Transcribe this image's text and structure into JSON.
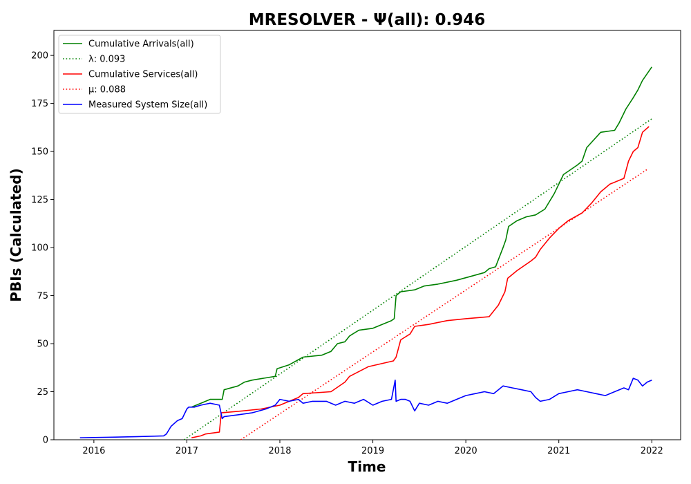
{
  "chart_data": {
    "type": "line",
    "title": "MRESOLVER -  Ψ(all): 0.946",
    "xlabel": "Time",
    "ylabel": "PBIs (Calculated)",
    "xlim": [
      2015.57,
      2022.31
    ],
    "ylim": [
      0,
      213
    ],
    "x_ticks": [
      2016,
      2017,
      2018,
      2019,
      2020,
      2021,
      2022
    ],
    "x_tick_labels": [
      "2016",
      "2017",
      "2018",
      "2019",
      "2020",
      "2021",
      "2022"
    ],
    "y_ticks": [
      0,
      25,
      50,
      75,
      100,
      125,
      150,
      175,
      200
    ],
    "y_tick_labels": [
      "0",
      "25",
      "50",
      "75",
      "100",
      "125",
      "150",
      "175",
      "200"
    ],
    "grid": false,
    "legend_position": "top-left",
    "series": [
      {
        "name": "Cumulative Arrivals(all)",
        "color": "#008000",
        "style": "solid",
        "x": [
          2017.05,
          2017.15,
          2017.25,
          2017.38,
          2017.4,
          2017.55,
          2017.62,
          2017.7,
          2017.95,
          2017.97,
          2018.1,
          2018.25,
          2018.45,
          2018.55,
          2018.62,
          2018.7,
          2018.75,
          2018.85,
          2019.0,
          2019.1,
          2019.2,
          2019.23,
          2019.25,
          2019.3,
          2019.45,
          2019.55,
          2019.7,
          2019.9,
          2020.05,
          2020.2,
          2020.25,
          2020.32,
          2020.4,
          2020.43,
          2020.46,
          2020.55,
          2020.65,
          2020.75,
          2020.85,
          2020.95,
          2021.05,
          2021.2,
          2021.25,
          2021.3,
          2021.45,
          2021.6,
          2021.65,
          2021.72,
          2021.8,
          2021.85,
          2021.9,
          2022.0
        ],
        "y": [
          17,
          19,
          21,
          21,
          26,
          28,
          30,
          31,
          33,
          37,
          39,
          43,
          44,
          46,
          50,
          51,
          54,
          57,
          58,
          60,
          62,
          63,
          75,
          77,
          78,
          80,
          81,
          83,
          85,
          87,
          89,
          90,
          100,
          104,
          111,
          114,
          116,
          117,
          120,
          128,
          138,
          143,
          145,
          152,
          160,
          161,
          165,
          172,
          178,
          182,
          187,
          194
        ]
      },
      {
        "name": "λ: 0.093",
        "color": "#008000",
        "style": "dotted",
        "x": [
          2016.97,
          2022.0
        ],
        "y": [
          0,
          167
        ]
      },
      {
        "name": "Cumulative Services(all)",
        "color": "#ff0000",
        "style": "solid",
        "x": [
          2017.05,
          2017.15,
          2017.2,
          2017.35,
          2017.37,
          2017.6,
          2017.8,
          2018.0,
          2018.1,
          2018.2,
          2018.25,
          2018.55,
          2018.7,
          2018.75,
          2018.95,
          2019.22,
          2019.25,
          2019.3,
          2019.4,
          2019.45,
          2019.6,
          2019.8,
          2020.0,
          2020.25,
          2020.3,
          2020.35,
          2020.42,
          2020.45,
          2020.55,
          2020.7,
          2020.75,
          2020.8,
          2020.9,
          2021.0,
          2021.1,
          2021.25,
          2021.35,
          2021.45,
          2021.55,
          2021.65,
          2021.7,
          2021.75,
          2021.8,
          2021.85,
          2021.9,
          2021.97
        ],
        "y": [
          1,
          2,
          3,
          4,
          14,
          15,
          16,
          18,
          20,
          22,
          24,
          25,
          30,
          33,
          38,
          41,
          43,
          52,
          55,
          59,
          60,
          62,
          63,
          64,
          67,
          70,
          77,
          84,
          88,
          93,
          95,
          99,
          105,
          110,
          114,
          118,
          123,
          129,
          133,
          135,
          136,
          145,
          150,
          152,
          160,
          163
        ]
      },
      {
        "name": "μ: 0.088",
        "color": "#ff0000",
        "style": "dotted",
        "x": [
          2017.58,
          2021.96
        ],
        "y": [
          0,
          141
        ]
      },
      {
        "name": "Measured System Size(all)",
        "color": "#0000ff",
        "style": "solid",
        "x": [
          2015.85,
          2016.15,
          2016.45,
          2016.75,
          2016.78,
          2016.83,
          2016.9,
          2016.95,
          2017.0,
          2017.02,
          2017.08,
          2017.15,
          2017.25,
          2017.35,
          2017.38,
          2017.4,
          2017.55,
          2017.7,
          2017.85,
          2017.95,
          2018.0,
          2018.1,
          2018.2,
          2018.25,
          2018.35,
          2018.5,
          2018.6,
          2018.7,
          2018.8,
          2018.9,
          2019.0,
          2019.1,
          2019.2,
          2019.24,
          2019.25,
          2019.3,
          2019.35,
          2019.4,
          2019.45,
          2019.5,
          2019.6,
          2019.7,
          2019.8,
          2019.9,
          2020.0,
          2020.1,
          2020.2,
          2020.3,
          2020.4,
          2020.5,
          2020.6,
          2020.7,
          2020.75,
          2020.8,
          2020.9,
          2021.0,
          2021.1,
          2021.2,
          2021.3,
          2021.4,
          2021.5,
          2021.6,
          2021.7,
          2021.75,
          2021.8,
          2021.85,
          2021.9,
          2021.95,
          2022.0
        ],
        "y": [
          1,
          1.3,
          1.6,
          2,
          3,
          7,
          10,
          11,
          16,
          17,
          17,
          18,
          19,
          18,
          11,
          12,
          13,
          14,
          16,
          18,
          21,
          20,
          21,
          19,
          20,
          20,
          18,
          20,
          19,
          21,
          18,
          20,
          21,
          31,
          20,
          21,
          21,
          20,
          15,
          19,
          18,
          20,
          19,
          21,
          23,
          24,
          25,
          24,
          28,
          27,
          26,
          25,
          22,
          20,
          21,
          24,
          25,
          26,
          25,
          24,
          23,
          25,
          27,
          26,
          32,
          31,
          28,
          30,
          31
        ]
      }
    ]
  }
}
